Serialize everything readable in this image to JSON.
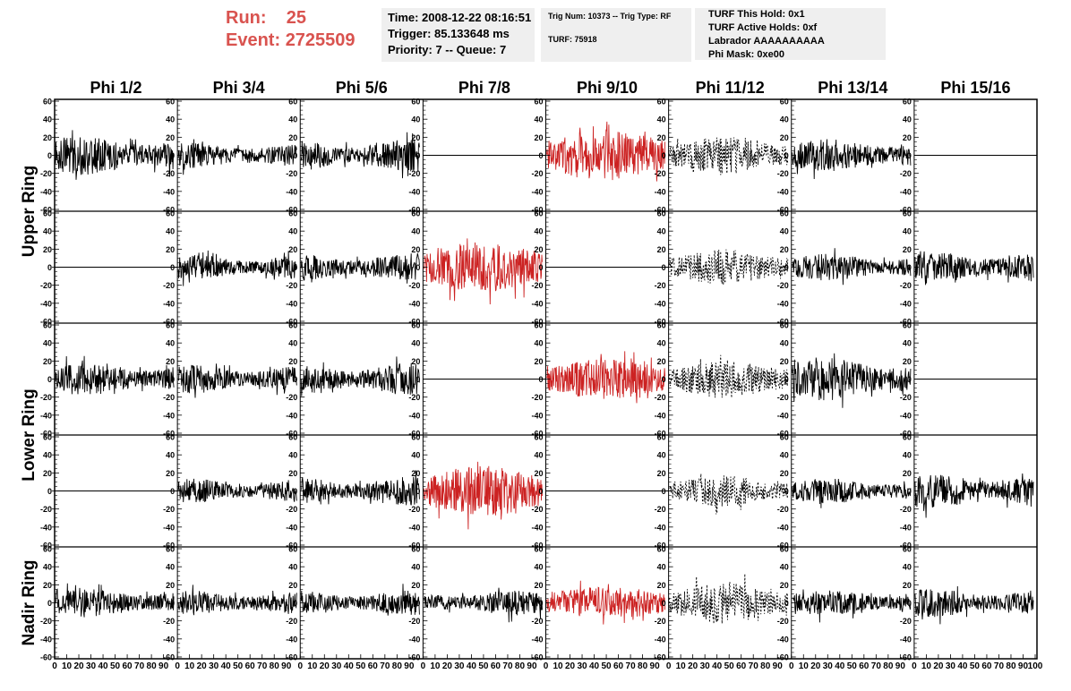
{
  "header": {
    "run_label": "Run:",
    "run_value": "25",
    "event_label": "Event:",
    "event_value": "2725509",
    "time": "Time: 2008-12-22 08:16:51",
    "trigger": "Trigger: 85.133648 ms",
    "priority": "Priority: 7 -- Queue: 7",
    "trig_num": "Trig Num: 10373 -- Trig Type: RF",
    "turf": "TURF: 75918",
    "turf_this_hold": "TURF This Hold: 0x1",
    "turf_active_holds": "TURF Active Holds: 0xf",
    "labrador": "Labrador AAAAAAAAAA",
    "phi_mask": "Phi Mask: 0xe00"
  },
  "chart_data": {
    "type": "line",
    "columns": [
      "Phi 1/2",
      "Phi 3/4",
      "Phi 5/6",
      "Phi 7/8",
      "Phi 9/10",
      "Phi 11/12",
      "Phi 13/14",
      "Phi 15/16"
    ],
    "ring_labels": [
      "Upper Ring",
      "Lower Ring",
      "Nadir Ring"
    ],
    "ylim": [
      -62,
      62
    ],
    "y_ticks": [
      -60,
      -40,
      -20,
      0,
      20,
      40,
      60
    ],
    "xlim": [
      0,
      100
    ],
    "x_ticks": [
      0,
      10,
      20,
      30,
      40,
      50,
      60,
      70,
      80,
      90,
      100
    ],
    "colors": {
      "normal": "#000000",
      "triggered": "#cc2222"
    },
    "rows": [
      [
        "noise",
        "noise",
        "noise",
        "flat",
        "red-strong",
        "dashed",
        "noise",
        "flat"
      ],
      [
        "flat",
        "noise",
        "noise",
        "red-strong",
        "flat",
        "dashed",
        "noise",
        "noise"
      ],
      [
        "noise",
        "noise",
        "noise",
        "flat",
        "red",
        "dashed",
        "noise",
        "flat"
      ],
      [
        "flat",
        "noise",
        "noise",
        "red-strong",
        "flat",
        "dashed",
        "noise",
        "noise"
      ],
      [
        "noise",
        "noise",
        "noise",
        "noise",
        "red",
        "dashed",
        "noise",
        "noise"
      ]
    ],
    "amplitudes": [
      [
        22,
        14,
        18,
        0,
        28,
        22,
        18,
        0
      ],
      [
        0,
        14,
        16,
        28,
        0,
        20,
        15,
        18
      ],
      [
        18,
        16,
        18,
        0,
        22,
        22,
        24,
        0
      ],
      [
        0,
        14,
        16,
        28,
        0,
        18,
        14,
        20
      ],
      [
        16,
        14,
        14,
        14,
        18,
        24,
        14,
        16
      ]
    ]
  }
}
